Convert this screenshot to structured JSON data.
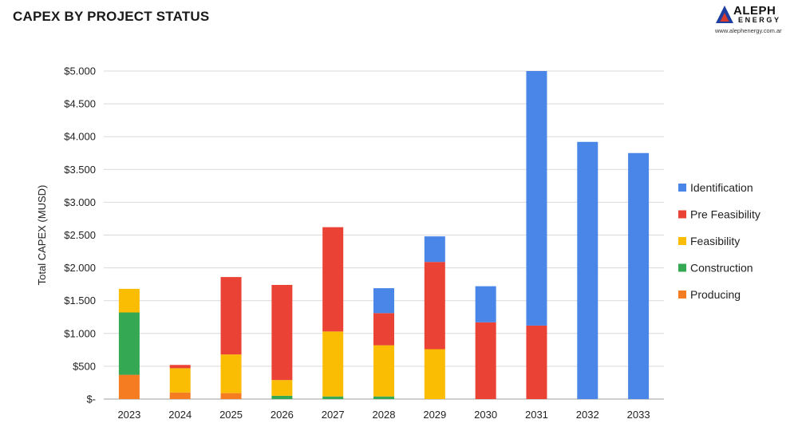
{
  "title": "CAPEX BY PROJECT STATUS",
  "brand": {
    "name": "ALEPH",
    "sub": "ENERGY",
    "url": "www.alephenergy.com.ar",
    "mark_colors": {
      "outer": "#1f3fa0",
      "inner": "#d93a2e"
    }
  },
  "chart_data": {
    "type": "bar",
    "stacked": true,
    "ylabel": "Total CAPEX (MUSD)",
    "xlabel": "",
    "ylim": [
      0,
      5000
    ],
    "yticks": [
      0,
      500,
      1000,
      1500,
      2000,
      2500,
      3000,
      3500,
      4000,
      4500,
      5000
    ],
    "ytick_labels": [
      "$-",
      "$500",
      "$1.000",
      "$1.500",
      "$2.000",
      "$2.500",
      "$3.000",
      "$3.500",
      "$4.000",
      "$4.500",
      "$5.000"
    ],
    "grid": true,
    "legend_position": "right",
    "categories": [
      "2023",
      "2024",
      "2025",
      "2026",
      "2027",
      "2028",
      "2029",
      "2030",
      "2031",
      "2032",
      "2033"
    ],
    "series": [
      {
        "name": "Producing",
        "color": "#f57c20",
        "values": [
          370,
          100,
          90,
          0,
          0,
          0,
          0,
          0,
          0,
          0,
          0
        ]
      },
      {
        "name": "Construction",
        "color": "#34a853",
        "values": [
          950,
          0,
          0,
          50,
          40,
          40,
          0,
          0,
          0,
          0,
          0
        ]
      },
      {
        "name": "Feasibility",
        "color": "#fbbc04",
        "values": [
          360,
          370,
          590,
          240,
          990,
          780,
          760,
          0,
          0,
          0,
          0
        ]
      },
      {
        "name": "Pre Feasibility",
        "color": "#ea4335",
        "values": [
          0,
          50,
          1180,
          1450,
          1590,
          490,
          1330,
          1170,
          1120,
          0,
          0
        ]
      },
      {
        "name": "Identification",
        "color": "#4a86e8",
        "values": [
          0,
          0,
          0,
          0,
          0,
          380,
          390,
          550,
          3880,
          3920,
          3750
        ]
      }
    ],
    "legend_order": [
      "Identification",
      "Pre Feasibility",
      "Feasibility",
      "Construction",
      "Producing"
    ]
  }
}
